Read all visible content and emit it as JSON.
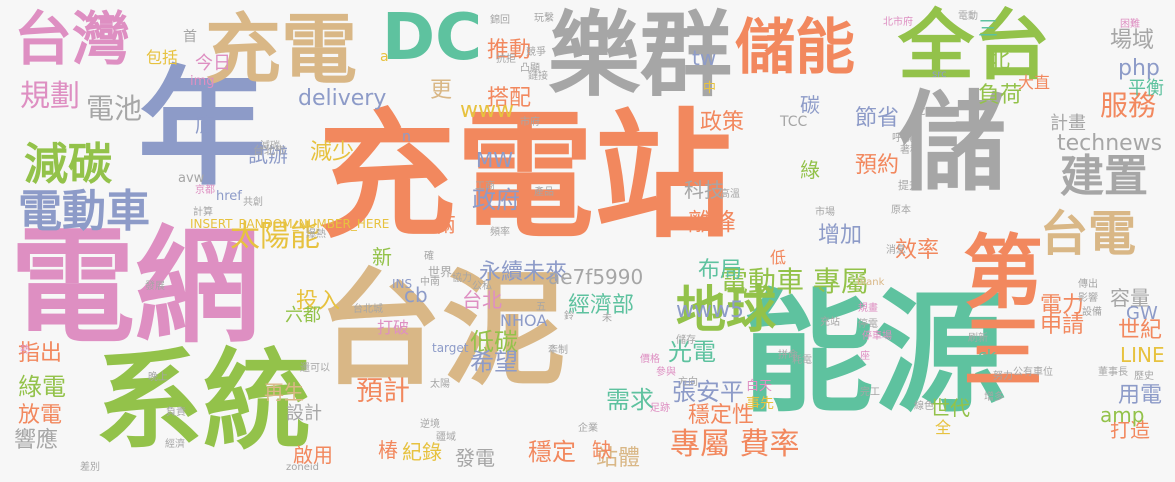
{
  "palette": {
    "orange": "#f2885e",
    "tan": "#d9b786",
    "green": "#93c24a",
    "teal": "#5ec29f",
    "blue": "#8d9bc8",
    "pink": "#de8fc2",
    "gray": "#a6a6a6",
    "yellow": "#e7c23f"
  },
  "words": [
    {
      "text": "充電站",
      "color": "#f2885e"
    },
    {
      "text": "台泥",
      "color": "#d9b786"
    },
    {
      "text": "能源",
      "color": "#5ec29f"
    },
    {
      "text": "電網",
      "color": "#de8fc2"
    },
    {
      "text": "年",
      "color": "#8d9bc8"
    },
    {
      "text": "系統",
      "color": "#93c24a"
    },
    {
      "text": "儲",
      "color": "#a6a6a6"
    },
    {
      "text": "樂群",
      "color": "#a6a6a6"
    },
    {
      "text": "充電",
      "color": "#d9b786"
    },
    {
      "text": "全台",
      "color": "#93c24a"
    },
    {
      "text": "DC",
      "color": "#5ec29f"
    },
    {
      "text": "台灣",
      "color": "#de8fc2"
    },
    {
      "text": "儲能",
      "color": "#f2885e"
    },
    {
      "text": "第三",
      "color": "#f2885e"
    },
    {
      "text": "台電",
      "color": "#d9b786"
    },
    {
      "text": "地球",
      "color": "#93c24a"
    },
    {
      "text": "建置",
      "color": "#a6a6a6"
    },
    {
      "text": "減碳",
      "color": "#93c24a"
    },
    {
      "text": "電動車",
      "color": "#8d9bc8"
    },
    {
      "text": "電動車 專屬",
      "color": "#93c24a"
    },
    {
      "text": "專屬 費率",
      "color": "#f2885e"
    },
    {
      "text": "太陽能",
      "color": "#e7c23f"
    },
    {
      "text": "預計",
      "color": "#f2885e"
    },
    {
      "text": "規劃",
      "color": "#de8fc2"
    },
    {
      "text": "電池",
      "color": "#a6a6a6"
    },
    {
      "text": "服務",
      "color": "#f2885e"
    },
    {
      "text": "場域",
      "color": "#a6a6a6"
    },
    {
      "text": "technews",
      "color": "#a6a6a6"
    },
    {
      "text": "delivery",
      "color": "#8d9bc8"
    },
    {
      "text": "永續未來",
      "color": "#8d9bc8"
    },
    {
      "text": "張安平",
      "color": "#8d9bc8"
    },
    {
      "text": "穩定性",
      "color": "#f2885e"
    },
    {
      "text": "穩定",
      "color": "#f2885e"
    },
    {
      "text": "站體",
      "color": "#d9b786"
    },
    {
      "text": "經濟部",
      "color": "#5ec29f"
    },
    {
      "text": "政府",
      "color": "#8d9bc8"
    },
    {
      "text": "離峰",
      "color": "#f2885e"
    },
    {
      "text": "低碳",
      "color": "#93c24a"
    },
    {
      "text": "希望",
      "color": "#8d9bc8"
    },
    {
      "text": "光電",
      "color": "#5ec29f"
    },
    {
      "text": "需求",
      "color": "#5ec29f"
    },
    {
      "text": "電力",
      "color": "#f2885e"
    },
    {
      "text": "申請",
      "color": "#f2885e"
    },
    {
      "text": "世紀",
      "color": "#f2885e"
    },
    {
      "text": "LINE",
      "color": "#e7c23f"
    },
    {
      "text": "用電",
      "color": "#8d9bc8"
    },
    {
      "text": "打造",
      "color": "#f2885e"
    },
    {
      "text": "容量",
      "color": "#a6a6a6"
    },
    {
      "text": "GW",
      "color": "#8d9bc8"
    },
    {
      "text": "amp",
      "color": "#93c24a"
    },
    {
      "text": "php",
      "color": "#8d9bc8"
    },
    {
      "text": "平衡",
      "color": "#5ec29f"
    },
    {
      "text": "計畫",
      "color": "#a6a6a6"
    },
    {
      "text": "負荷",
      "color": "#93c24a"
    },
    {
      "text": "北",
      "color": "#93c24a"
    },
    {
      "text": "三",
      "color": "#5ec29f"
    },
    {
      "text": "推動",
      "color": "#f2885e"
    },
    {
      "text": "搭配",
      "color": "#f2885e"
    },
    {
      "text": "更",
      "color": "#d9b786"
    },
    {
      "text": "政策",
      "color": "#f2885e"
    },
    {
      "text": "www",
      "color": "#e7c23f"
    },
    {
      "text": "MW",
      "color": "#8d9bc8"
    },
    {
      "text": "tw",
      "color": "#8d9bc8"
    },
    {
      "text": "綠",
      "color": "#93c24a"
    },
    {
      "text": "碳",
      "color": "#8d9bc8"
    },
    {
      "text": "節省",
      "color": "#8d9bc8"
    },
    {
      "text": "預約",
      "color": "#f2885e"
    },
    {
      "text": "科技",
      "color": "#a6a6a6"
    },
    {
      "text": "增加",
      "color": "#8d9bc8"
    },
    {
      "text": "效率",
      "color": "#f2885e"
    },
    {
      "text": "布局",
      "color": "#5ec29f"
    },
    {
      "text": "www5",
      "color": "#8d9bc8"
    },
    {
      "text": "台北",
      "color": "#de8fc2"
    },
    {
      "text": "兩",
      "color": "#f2885e"
    },
    {
      "text": "cb",
      "color": "#8d9bc8"
    },
    {
      "text": "新",
      "color": "#93c24a"
    },
    {
      "text": "投入",
      "color": "#e7c23f"
    },
    {
      "text": "六都",
      "color": "#93c24a"
    },
    {
      "text": "打破",
      "color": "#de8fc2"
    },
    {
      "text": "減少",
      "color": "#e7c23f"
    },
    {
      "text": "試辦",
      "color": "#8d9bc8"
    },
    {
      "text": "底",
      "color": "#8d9bc8"
    },
    {
      "text": "指出",
      "color": "#f2885e"
    },
    {
      "text": "綠電",
      "color": "#93c24a"
    },
    {
      "text": "放電",
      "color": "#f2885e"
    },
    {
      "text": "響應",
      "color": "#a6a6a6"
    },
    {
      "text": "再生",
      "color": "#d9b786"
    },
    {
      "text": "設計",
      "color": "#a6a6a6"
    },
    {
      "text": "啟用",
      "color": "#f2885e"
    },
    {
      "text": "椿",
      "color": "#f2885e"
    },
    {
      "text": "紀錄",
      "color": "#e7c23f"
    },
    {
      "text": "發電",
      "color": "#a6a6a6"
    },
    {
      "text": "缺",
      "color": "#f2885e"
    },
    {
      "text": "ae7f5990",
      "color": "#a6a6a6"
    },
    {
      "text": "NHOA",
      "color": "#8d9bc8"
    },
    {
      "text": "世代",
      "color": "#93c24a"
    },
    {
      "text": "全",
      "color": "#e7c23f"
    },
    {
      "text": "ck",
      "color": "#5ec29f"
    },
    {
      "text": "今日",
      "color": "#de8fc2"
    },
    {
      "text": "包括",
      "color": "#e7c23f"
    },
    {
      "text": "首",
      "color": "#a6a6a6"
    },
    {
      "text": "img",
      "color": "#de8fc2"
    },
    {
      "text": "a",
      "color": "#e7c23f"
    },
    {
      "text": "中",
      "color": "#e7c23f"
    },
    {
      "text": "大直",
      "color": "#f2885e"
    },
    {
      "text": "TCC",
      "color": "#a6a6a6"
    },
    {
      "text": "n",
      "color": "#8d9bc8"
    },
    {
      "text": "低",
      "color": "#f2885e"
    },
    {
      "text": "href",
      "color": "#8d9bc8"
    },
    {
      "text": "avw",
      "color": "#a6a6a6"
    },
    {
      "text": "INSERT_RANDOM_NUMBER_HERE",
      "color": "#e7c23f"
    },
    {
      "text": "target",
      "color": "#8d9bc8"
    },
    {
      "text": "zoneid",
      "color": "#a6a6a6"
    },
    {
      "text": "blank",
      "color": "#d9b786"
    },
    {
      "text": "src",
      "color": "#8d9bc8"
    },
    {
      "text": "AC",
      "color": "#a6a6a6"
    },
    {
      "text": "INS",
      "color": "#8d9bc8"
    },
    {
      "text": "事先",
      "color": "#e7c23f"
    },
    {
      "text": "白天",
      "color": "#de8fc2"
    },
    {
      "text": "歷史",
      "color": "#a6a6a6"
    },
    {
      "text": "董事長",
      "color": "#a6a6a6"
    },
    {
      "text": "公有車位",
      "color": "#a6a6a6"
    },
    {
      "text": "刷新",
      "color": "#a6a6a6"
    },
    {
      "text": "停電",
      "color": "#a6a6a6"
    },
    {
      "text": "市場",
      "color": "#a6a6a6"
    },
    {
      "text": "工商",
      "color": "#a6a6a6"
    },
    {
      "text": "產品",
      "color": "#a6a6a6"
    },
    {
      "text": "高溫",
      "color": "#a6a6a6"
    },
    {
      "text": "台北市",
      "color": "#a6a6a6"
    },
    {
      "text": "北市府",
      "color": "#de8fc2"
    },
    {
      "text": "電動",
      "color": "#a6a6a6"
    },
    {
      "text": "困難",
      "color": "#de8fc2"
    },
    {
      "text": "減碳",
      "color": "#a6a6a6"
    },
    {
      "text": "世界",
      "color": "#a6a6a6"
    },
    {
      "text": "協力",
      "color": "#a6a6a6"
    },
    {
      "text": "公私",
      "color": "#a6a6a6"
    },
    {
      "text": "台北城",
      "color": "#a6a6a6"
    },
    {
      "text": "方向",
      "color": "#a6a6a6"
    },
    {
      "text": "太陽",
      "color": "#a6a6a6"
    },
    {
      "text": "價格",
      "color": "#de8fc2"
    },
    {
      "text": "參與",
      "color": "#de8fc2"
    },
    {
      "text": "儲存",
      "color": "#a6a6a6"
    },
    {
      "text": "共創",
      "color": "#a6a6a6"
    },
    {
      "text": "京都",
      "color": "#de8fc2"
    },
    {
      "text": "提升",
      "color": "#a6a6a6"
    },
    {
      "text": "原本",
      "color": "#a6a6a6"
    },
    {
      "text": "消息",
      "color": "#a6a6a6"
    },
    {
      "text": "傳出",
      "color": "#a6a6a6"
    },
    {
      "text": "影響",
      "color": "#a6a6a6"
    },
    {
      "text": "設備",
      "color": "#a6a6a6"
    },
    {
      "text": "規畫",
      "color": "#de8fc2"
    },
    {
      "text": "完工",
      "color": "#a6a6a6"
    },
    {
      "text": "線色",
      "color": "#a6a6a6"
    },
    {
      "text": "發展",
      "color": "#a6a6a6"
    },
    {
      "text": "熱",
      "color": "#de8fc2"
    },
    {
      "text": "晚上",
      "color": "#a6a6a6"
    },
    {
      "text": "負責",
      "color": "#a6a6a6"
    },
    {
      "text": "經濟",
      "color": "#a6a6a6"
    },
    {
      "text": "差別",
      "color": "#a6a6a6"
    },
    {
      "text": "計算",
      "color": "#a6a6a6"
    },
    {
      "text": "爆熱",
      "color": "#a6a6a6"
    },
    {
      "text": "頻率",
      "color": "#a6a6a6"
    },
    {
      "text": "逆境",
      "color": "#a6a6a6"
    },
    {
      "text": "疆域",
      "color": "#a6a6a6"
    },
    {
      "text": "牽制",
      "color": "#a6a6a6"
    },
    {
      "text": "市府",
      "color": "#a6a6a6"
    },
    {
      "text": "凸顯",
      "color": "#a6a6a6"
    },
    {
      "text": "競爭",
      "color": "#a6a6a6"
    },
    {
      "text": "鏈接",
      "color": "#a6a6a6"
    },
    {
      "text": "錦回",
      "color": "#a6a6a6"
    },
    {
      "text": "抗拒",
      "color": "#a6a6a6"
    },
    {
      "text": "玩繫",
      "color": "#a6a6a6"
    },
    {
      "text": "呼籲",
      "color": "#a6a6a6"
    },
    {
      "text": "著稅",
      "color": "#a6a6a6"
    },
    {
      "text": "充站",
      "color": "#a6a6a6"
    },
    {
      "text": "停車場",
      "color": "#de8fc2"
    },
    {
      "text": "座",
      "color": "#de8fc2"
    },
    {
      "text": "拼命",
      "color": "#a6a6a6"
    },
    {
      "text": "耗電",
      "color": "#a6a6a6"
    },
    {
      "text": "還可以",
      "color": "#a6a6a6"
    },
    {
      "text": "努力",
      "color": "#a6a6a6"
    },
    {
      "text": "增多",
      "color": "#a6a6a6"
    },
    {
      "text": "中南",
      "color": "#a6a6a6"
    },
    {
      "text": "確",
      "color": "#a6a6a6"
    },
    {
      "text": "企業",
      "color": "#a6a6a6"
    },
    {
      "text": "足跡",
      "color": "#de8fc2"
    },
    {
      "text": "五",
      "color": "#a6a6a6"
    },
    {
      "text": "鈴",
      "color": "#a6a6a6"
    },
    {
      "text": "未",
      "color": "#a6a6a6"
    }
  ]
}
